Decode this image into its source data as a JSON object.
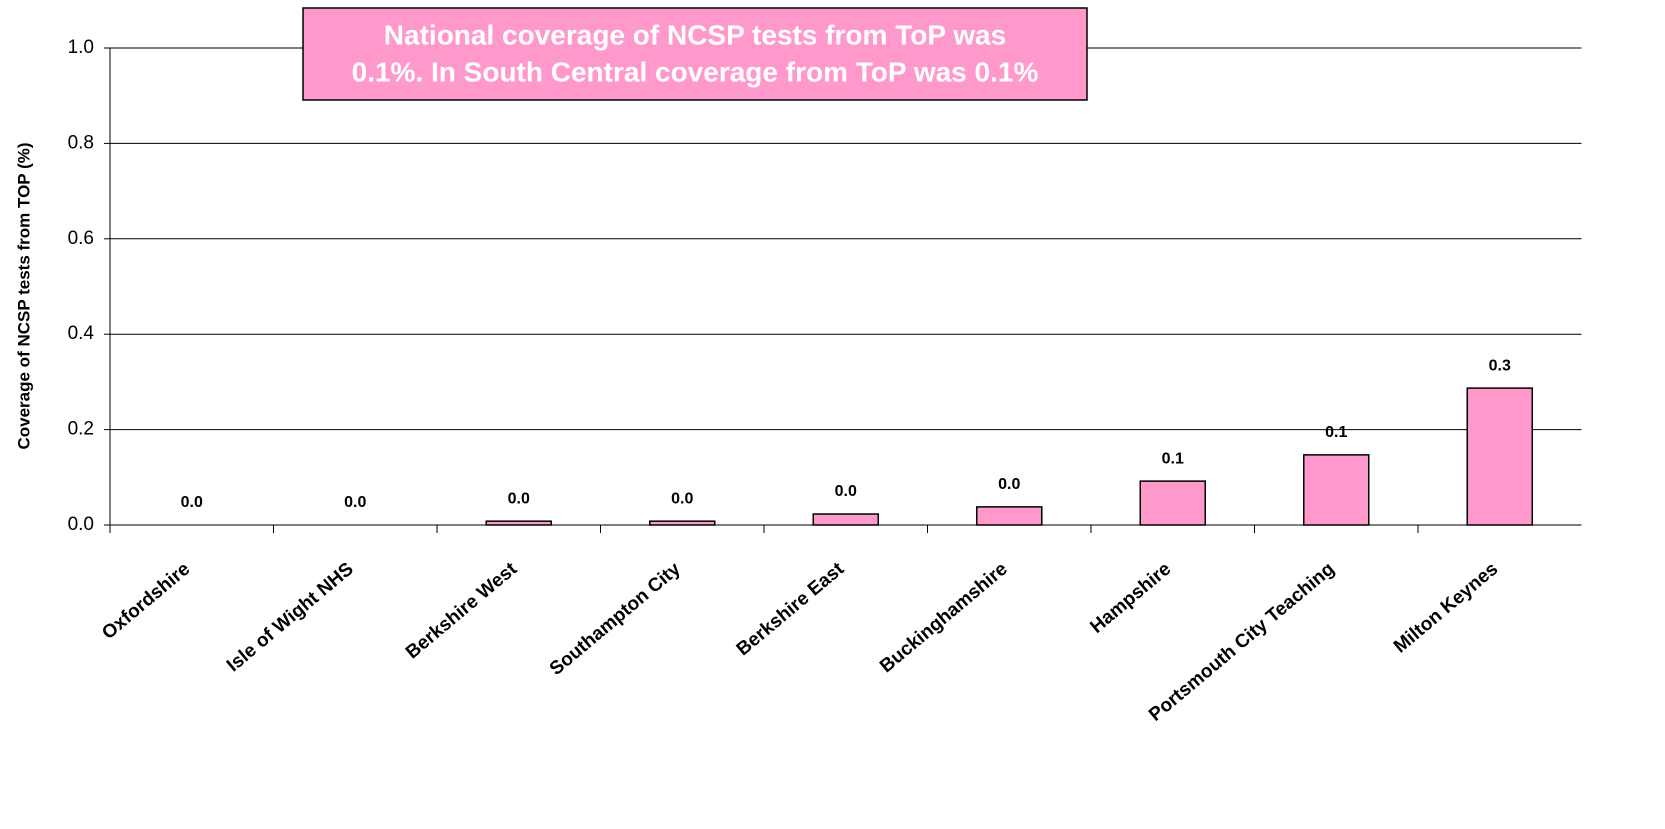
{
  "chart_data": {
    "type": "bar",
    "y_label": "Coverage of NCSP tests from TOP (%)",
    "annotation": [
      "National coverage of NCSP tests from ToP was",
      "0.1%. In South Central coverage from ToP was 0.1%"
    ],
    "categories": [
      "Oxfordshire",
      "Isle of Wight NHS",
      "Berkshire West",
      "Southampton City",
      "Berkshire East",
      "Buckinghamshire",
      "Hampshire",
      "Portsmouth City Teaching",
      "Milton Keynes"
    ],
    "values": [
      0,
      0,
      0.008,
      0.008,
      0.023,
      0.038,
      0.092,
      0.147,
      0.287
    ],
    "value_labels": [
      "0.0",
      "0.0",
      "0.0",
      "0.0",
      "0.0",
      "0.0",
      "0.1",
      "0.1",
      "0.3"
    ],
    "color": "#ff99cc",
    "ylim": [
      0,
      1
    ],
    "yticks": [
      {
        "value": 0,
        "label": "0.0"
      },
      0.2,
      0.4,
      0.6,
      0.8,
      {
        "value": 1,
        "label": "1.0"
      }
    ],
    "grid": true
  }
}
